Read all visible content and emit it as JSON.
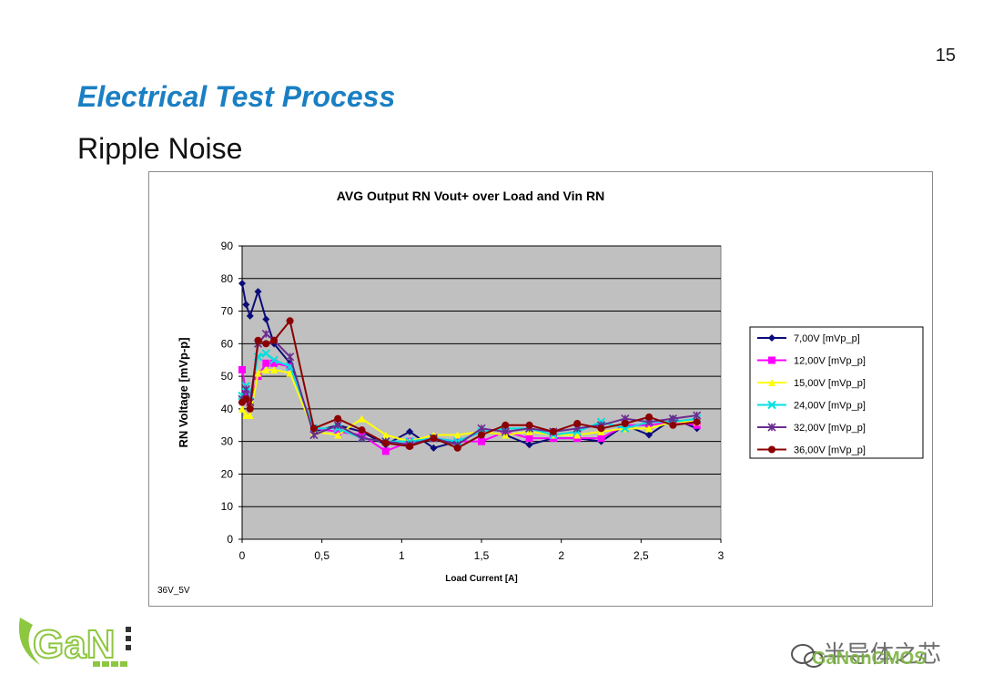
{
  "slide": {
    "page_number": "15",
    "title": "Electrical Test Process",
    "subtitle": "Ripple Noise",
    "logo_text": "GaN",
    "watermark_cn": "半导体之芯",
    "watermark_en": "GaNonCMOS"
  },
  "colors": {
    "title_blue": "#1b7fc4",
    "plot_bg": "#c0c0c0",
    "gridline": "#000000"
  },
  "chart_data": {
    "type": "line",
    "title": "AVG Output RN Vout+ over Load and Vin RN",
    "xlabel": "Load Current [A]",
    "ylabel": "RN Voltage [mVp-p]",
    "footnote": "36V_5V",
    "xlim": [
      0,
      3
    ],
    "ylim": [
      0,
      90
    ],
    "x_ticks": [
      0,
      0.5,
      1,
      1.5,
      2,
      2.5,
      3
    ],
    "x_tick_labels": [
      "0",
      "0,5",
      "1",
      "1,5",
      "2",
      "2,5",
      "3"
    ],
    "y_ticks": [
      0,
      10,
      20,
      30,
      40,
      50,
      60,
      70,
      80,
      90
    ],
    "y_tick_labels": [
      "0",
      "10",
      "20",
      "30",
      "40",
      "50",
      "60",
      "70",
      "80",
      "90"
    ],
    "x": [
      0,
      0.025,
      0.05,
      0.1,
      0.15,
      0.2,
      0.3,
      0.45,
      0.6,
      0.75,
      0.9,
      1.05,
      1.2,
      1.35,
      1.5,
      1.65,
      1.8,
      1.95,
      2.1,
      2.25,
      2.4,
      2.55,
      2.7,
      2.85
    ],
    "series": [
      {
        "name": "7,00V [mVp_p]",
        "color": "#0b0b7a",
        "marker": "diamond",
        "values": [
          78.5,
          72,
          68.5,
          76,
          67.5,
          60,
          54,
          33,
          35,
          33,
          29,
          33,
          28,
          30,
          33,
          32,
          29,
          31,
          31,
          30,
          35,
          32,
          37,
          34
        ]
      },
      {
        "name": "12,00V [mVp_p]",
        "color": "#ff00ff",
        "marker": "square",
        "values": [
          52,
          45,
          42,
          50,
          54,
          54,
          53,
          34,
          33,
          32,
          27,
          30,
          31,
          30,
          30,
          33,
          31,
          31,
          31,
          31,
          35,
          35,
          36,
          35
        ]
      },
      {
        "name": "15,00V [mVp_p]",
        "color": "#ffff00",
        "marker": "triangle",
        "values": [
          40,
          38,
          38,
          51,
          52,
          52,
          51,
          33,
          32,
          37,
          32,
          30,
          32,
          32,
          33,
          32,
          33,
          32,
          32,
          33,
          34,
          34,
          36,
          36
        ]
      },
      {
        "name": "24,00V [mVp_p]",
        "color": "#00e0e0",
        "marker": "x",
        "values": [
          44,
          47,
          44,
          56,
          57,
          55,
          53,
          34,
          34,
          31,
          30,
          30,
          31,
          30,
          33,
          34,
          34,
          32,
          33,
          36,
          34,
          36,
          36,
          37
        ]
      },
      {
        "name": "32,00V [mVp_p]",
        "color": "#6a2d8f",
        "marker": "star",
        "values": [
          43,
          46,
          42,
          60,
          63,
          61,
          56,
          32,
          35,
          31,
          30,
          29,
          31,
          29,
          34,
          33,
          34,
          33,
          34,
          35,
          37,
          36,
          37,
          38
        ]
      },
      {
        "name": "36,00V [mVp_p]",
        "color": "#8b0000",
        "marker": "circle",
        "values": [
          42,
          43,
          40,
          61,
          60,
          61,
          67,
          34,
          37,
          33.5,
          29.5,
          28.5,
          31,
          28,
          32,
          35,
          35,
          33,
          35.5,
          34,
          35.5,
          37.5,
          35,
          36
        ]
      }
    ]
  }
}
